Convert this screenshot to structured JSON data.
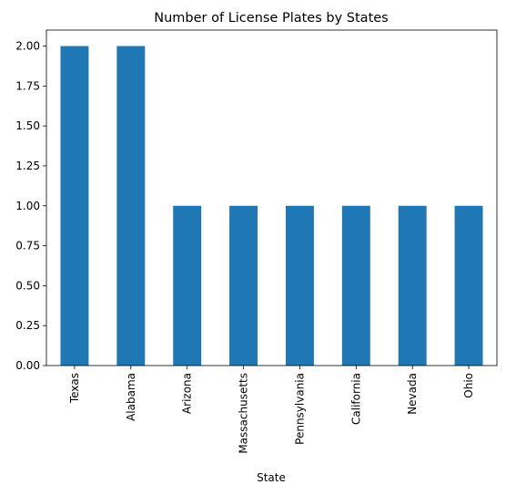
{
  "chart_data": {
    "type": "bar",
    "title": "Number of License Plates by States",
    "xlabel": "State",
    "ylabel": "",
    "categories": [
      "Texas",
      "Alabama",
      "Arizona",
      "Massachusetts",
      "Pennsylvania",
      "California",
      "Nevada",
      "Ohio"
    ],
    "values": [
      2,
      2,
      1,
      1,
      1,
      1,
      1,
      1
    ],
    "ylim": [
      0,
      2.1
    ],
    "yticks": [
      "0.00",
      "0.25",
      "0.50",
      "0.75",
      "1.00",
      "1.25",
      "1.50",
      "1.75",
      "2.00"
    ],
    "bar_color": "#1f77b4",
    "grid": false,
    "legend": "none"
  }
}
